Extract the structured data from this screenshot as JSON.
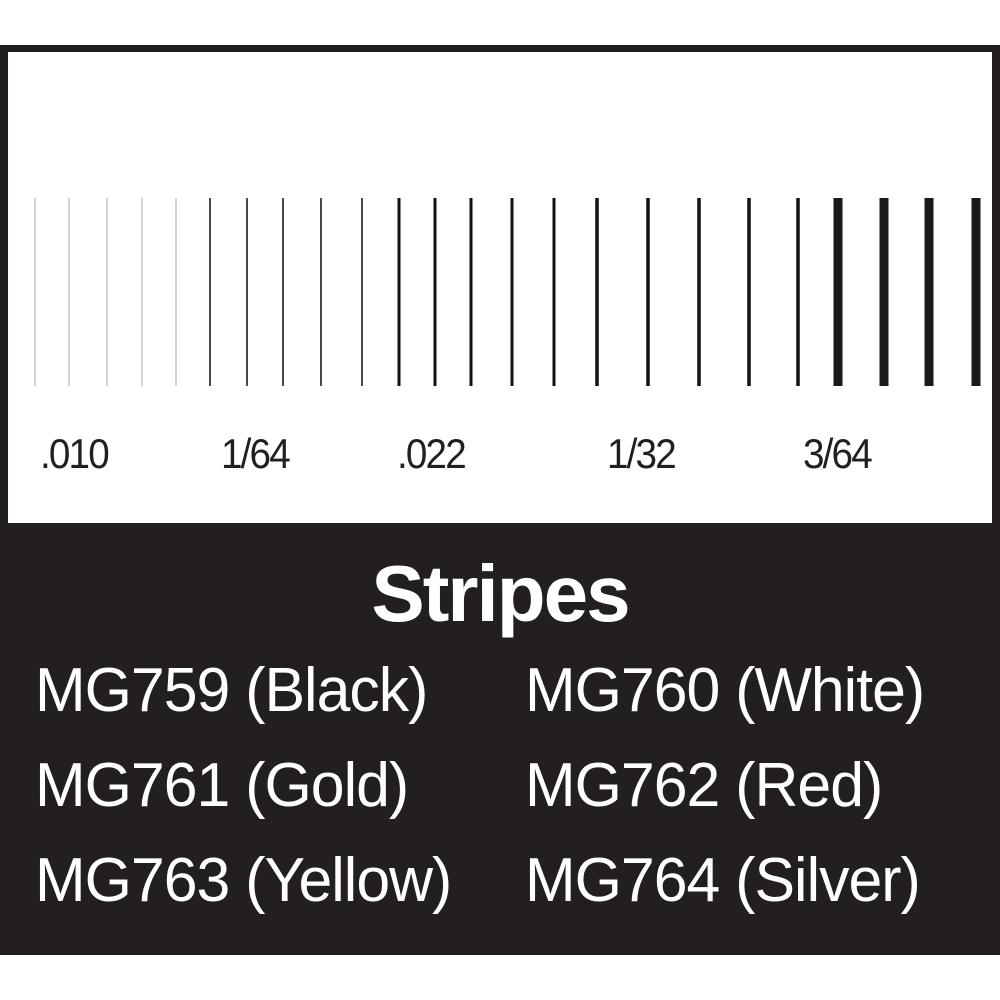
{
  "sizes": [
    ".010",
    "1/64",
    ".022",
    "1/32",
    "3/64"
  ],
  "title": "Stripes",
  "products": [
    {
      "label": "MG759 (Black)"
    },
    {
      "label": "MG760 (White)"
    },
    {
      "label": "MG761 (Gold)"
    },
    {
      "label": "MG762 (Red)"
    },
    {
      "label": "MG763 (Yellow)"
    },
    {
      "label": "MG764 (Silver)"
    }
  ],
  "colors": {
    "background": "#231f20",
    "panel": "#ffffff",
    "text_light": "#ffffff"
  }
}
